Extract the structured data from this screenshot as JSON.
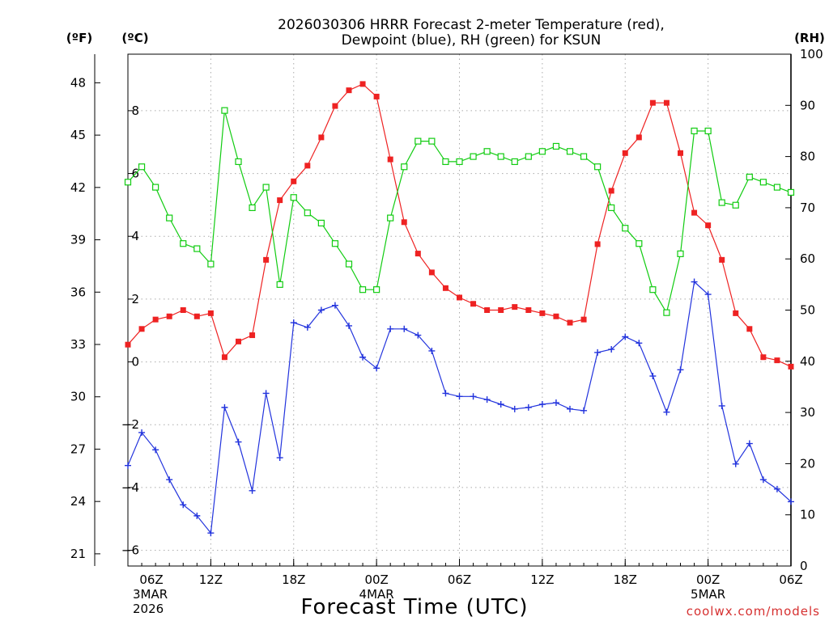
{
  "chart_data": {
    "type": "line",
    "title_line1": "2026030306 HRRR Forecast 2-meter Temperature (red),",
    "title_line2": "Dewpoint (blue), RH (green) for KSUN",
    "xlabel": "Forecast Time (UTC)",
    "credit": "coolwx.com/models",
    "units": {
      "f": "(ºF)",
      "c": "(ºC)",
      "rh": "(RH)"
    },
    "xlim": [
      6,
      54
    ],
    "x": [
      6,
      7,
      8,
      9,
      10,
      11,
      12,
      13,
      14,
      15,
      16,
      17,
      18,
      19,
      20,
      21,
      22,
      23,
      24,
      25,
      26,
      27,
      28,
      29,
      30,
      31,
      32,
      33,
      34,
      35,
      36,
      37,
      38,
      39,
      40,
      41,
      42,
      43,
      44,
      45,
      46,
      47,
      48,
      49,
      50,
      51,
      52,
      53,
      54
    ],
    "x_ticks": [
      {
        "x": 6,
        "label": "06Z",
        "date": "3MAR",
        "year": "2026"
      },
      {
        "x": 12,
        "label": "12Z"
      },
      {
        "x": 18,
        "label": "18Z"
      },
      {
        "x": 24,
        "label": "00Z",
        "date": "4MAR"
      },
      {
        "x": 30,
        "label": "06Z"
      },
      {
        "x": 36,
        "label": "12Z"
      },
      {
        "x": 42,
        "label": "18Z"
      },
      {
        "x": 48,
        "label": "00Z",
        "date": "5MAR"
      },
      {
        "x": 54,
        "label": "06Z"
      }
    ],
    "y_celsius": {
      "ylim": [
        -6.5,
        9.8
      ],
      "ticks": [
        8,
        6,
        4,
        2,
        0,
        -2,
        -4,
        -6
      ],
      "tick_labels": [
        "8",
        "6",
        "4",
        "2",
        "0",
        "−2",
        "−4",
        "−6"
      ]
    },
    "y_fahrenheit": {
      "ylim": [
        20.3,
        49.64
      ],
      "ticks": [
        48,
        45,
        42,
        39,
        36,
        33,
        30,
        27,
        24,
        21
      ],
      "tick_labels": [
        "48",
        "45",
        "42",
        "39",
        "36",
        "33",
        "30",
        "27",
        "24",
        "21"
      ]
    },
    "y_rh": {
      "ylim": [
        0,
        100
      ],
      "ticks": [
        100,
        90,
        80,
        70,
        60,
        50,
        40,
        30,
        20,
        10,
        0
      ],
      "tick_labels": [
        "100",
        "90",
        "80",
        "70",
        "60",
        "50",
        "40",
        "30",
        "20",
        "10",
        "0"
      ]
    },
    "series": [
      {
        "name": "Temperature",
        "axis": "celsius",
        "color": "#ee2222",
        "marker": "filled-square",
        "values": [
          0.55,
          1.05,
          1.35,
          1.45,
          1.65,
          1.45,
          1.55,
          0.15,
          0.65,
          0.85,
          3.25,
          5.15,
          5.75,
          6.25,
          7.15,
          8.15,
          8.65,
          8.85,
          8.45,
          6.45,
          4.45,
          3.45,
          2.85,
          2.35,
          2.05,
          1.85,
          1.65,
          1.65,
          1.75,
          1.65,
          1.55,
          1.45,
          1.25,
          1.35,
          3.75,
          5.45,
          6.65,
          7.15,
          8.25,
          8.25,
          6.65,
          4.75,
          4.35,
          3.25,
          1.55,
          1.05,
          0.15,
          0.05,
          -0.15
        ]
      },
      {
        "name": "Dewpoint",
        "axis": "celsius",
        "color": "#2233dd",
        "marker": "plus",
        "values": [
          -3.3,
          -2.25,
          -2.8,
          -3.75,
          -4.55,
          -4.9,
          -5.45,
          -1.45,
          -2.55,
          -4.1,
          -1.0,
          -3.05,
          1.25,
          1.1,
          1.65,
          1.8,
          1.15,
          0.15,
          -0.2,
          1.05,
          1.05,
          0.85,
          0.35,
          -1.0,
          -1.1,
          -1.1,
          -1.2,
          -1.35,
          -1.5,
          -1.45,
          -1.35,
          -1.3,
          -1.5,
          -1.55,
          0.3,
          0.4,
          0.8,
          0.6,
          -0.45,
          -1.6,
          -0.25,
          2.55,
          2.15,
          -1.4,
          -3.25,
          -2.6,
          -3.75,
          -4.05,
          -4.45
        ]
      },
      {
        "name": "RH",
        "axis": "rh",
        "color": "#11cc11",
        "marker": "open-square",
        "values": [
          75,
          78,
          74,
          68,
          63,
          62,
          59,
          89,
          79,
          70,
          74,
          55,
          72,
          69,
          67,
          63,
          59,
          54,
          54,
          68,
          78,
          83,
          83,
          79,
          79,
          80,
          81,
          80,
          79,
          80,
          81,
          82,
          81,
          80,
          78,
          70,
          66,
          63,
          54,
          49.5,
          61,
          85,
          85,
          71,
          70.5,
          76,
          75,
          74,
          73
        ]
      }
    ]
  }
}
